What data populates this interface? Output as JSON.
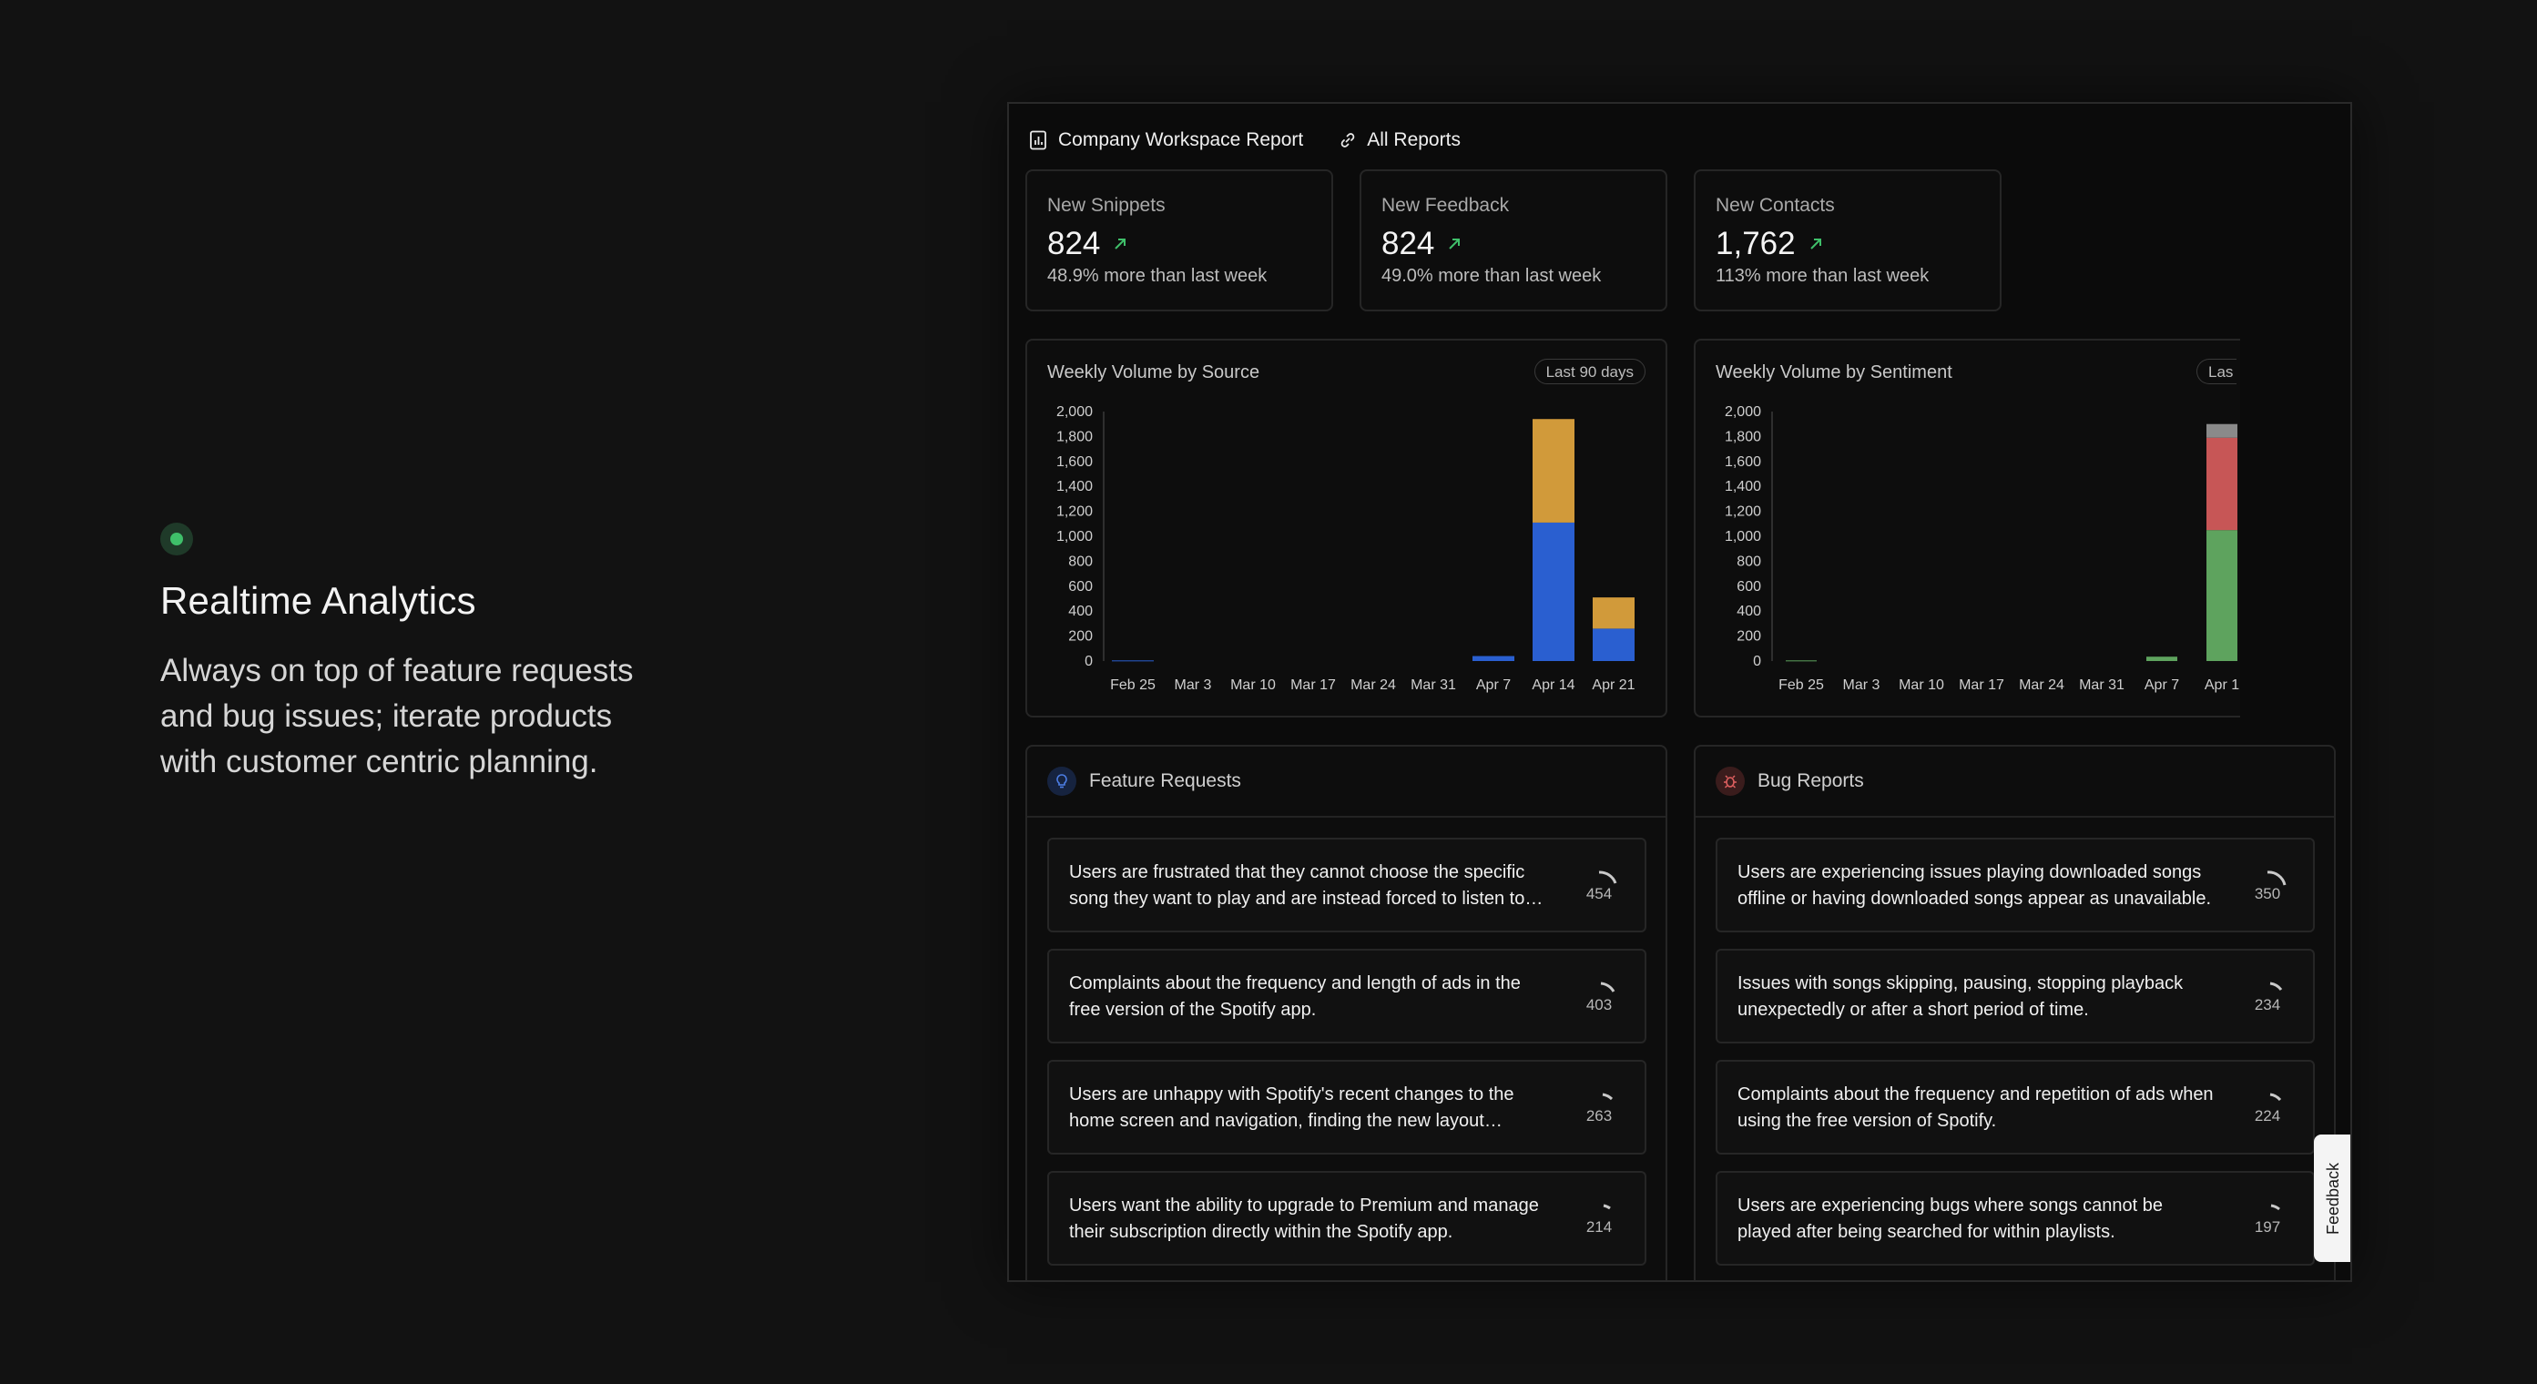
{
  "hero": {
    "title": "Realtime Analytics",
    "description": "Always on top of feature requests and bug issues; iterate products with customer centric planning."
  },
  "topbar": {
    "report_title": "Company Workspace Report",
    "all_reports": "All Reports"
  },
  "stats": [
    {
      "label": "New Snippets",
      "value": "824",
      "sub": "48.9% more than last week"
    },
    {
      "label": "New Feedback",
      "value": "824",
      "sub": "49.0% more than last week"
    },
    {
      "label": "New Contacts",
      "value": "1,762",
      "sub": "113% more than last week"
    }
  ],
  "colors": {
    "trend_up": "#3fbf6a",
    "source_a": "#2a5fd0",
    "source_b": "#d19a3a",
    "positive": "#5ea35e",
    "negative": "#c75656",
    "neutral": "#8a8a8a"
  },
  "chart_data": [
    {
      "type": "bar",
      "title": "Weekly Volume by Source",
      "badge": "Last 90 days",
      "stacked": true,
      "categories": [
        "Feb 25",
        "Mar 3",
        "Mar 10",
        "Mar 17",
        "Mar 24",
        "Mar 31",
        "Apr 7",
        "Apr 14",
        "Apr 21"
      ],
      "yticks": [
        "2,000",
        "1,800",
        "1,600",
        "1,400",
        "1,200",
        "1,000",
        "800",
        "600",
        "400",
        "200",
        "0"
      ],
      "ylim": [
        0,
        2000
      ],
      "grid": false,
      "series": [
        {
          "values": [
            5,
            0,
            0,
            0,
            0,
            0,
            40,
            1110,
            260
          ],
          "color": "#2a5fd0"
        },
        {
          "values": [
            0,
            0,
            0,
            0,
            0,
            0,
            0,
            830,
            250
          ],
          "color": "#d19a3a"
        }
      ]
    },
    {
      "type": "bar",
      "title": "Weekly Volume by Sentiment",
      "badge": "Las",
      "stacked": true,
      "categories": [
        "Feb 25",
        "Mar 3",
        "Mar 10",
        "Mar 17",
        "Mar 24",
        "Mar 31",
        "Apr 7",
        "Apr 1"
      ],
      "yticks": [
        "2,000",
        "1,800",
        "1,600",
        "1,400",
        "1,200",
        "1,000",
        "800",
        "600",
        "400",
        "200",
        "0"
      ],
      "ylim": [
        0,
        2000
      ],
      "grid": false,
      "series": [
        {
          "values": [
            5,
            0,
            0,
            0,
            0,
            0,
            35,
            1050
          ],
          "color": "#5ea35e"
        },
        {
          "values": [
            0,
            0,
            0,
            0,
            0,
            0,
            0,
            740
          ],
          "color": "#c75656"
        },
        {
          "values": [
            0,
            0,
            0,
            0,
            0,
            0,
            0,
            110
          ],
          "color": "#8a8a8a"
        }
      ]
    }
  ],
  "feature_requests": {
    "title": "Feature Requests",
    "items": [
      {
        "text": "Users are frustrated that they cannot choose the specific song they want to play and are instead forced to listen to shuffled songs.",
        "count": "454"
      },
      {
        "text": "Complaints about the frequency and length of ads in the free version of the Spotify app.",
        "count": "403"
      },
      {
        "text": "Users are unhappy with Spotify's recent changes to the home screen and navigation, finding the new layout confusing.",
        "count": "263"
      },
      {
        "text": "Users want the ability to upgrade to Premium and manage their subscription directly within the Spotify app.",
        "count": "214"
      }
    ]
  },
  "bug_reports": {
    "title": "Bug Reports",
    "items": [
      {
        "text": "Users are experiencing issues playing downloaded songs offline or having downloaded songs appear as unavailable.",
        "count": "350"
      },
      {
        "text": "Issues with songs skipping, pausing, stopping playback unexpectedly or after a short period of time.",
        "count": "234"
      },
      {
        "text": "Complaints about the frequency and repetition of ads when using the free version of Spotify.",
        "count": "224"
      },
      {
        "text": "Users are experiencing bugs where songs cannot be played after being searched for within playlists.",
        "count": "197"
      }
    ]
  },
  "feedback_tab": "Feedback"
}
